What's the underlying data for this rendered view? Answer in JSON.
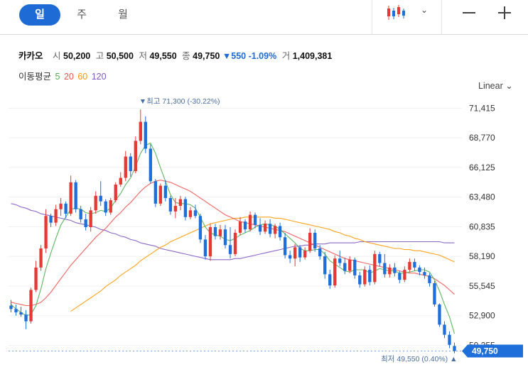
{
  "header": {
    "tabs": [
      {
        "label": "일",
        "active": true
      },
      {
        "label": "주",
        "active": false
      },
      {
        "label": "월",
        "active": false
      }
    ],
    "icons": [
      "candlestick-chart-icon",
      "chevron-down-icon",
      "zoom-out-icon",
      "zoom-in-icon"
    ]
  },
  "quote": {
    "name": "카카오",
    "open_label": "시",
    "open": "50,200",
    "high_label": "고",
    "high": "50,500",
    "low_label": "저",
    "low": "49,550",
    "close_label": "종",
    "close": "49,750",
    "change": "▼550",
    "change_pct": "-1.09%",
    "volume_label": "거",
    "volume": "1,409,381"
  },
  "ma_legend": {
    "label": "이동평균",
    "periods": [
      {
        "value": "5",
        "color": "#4caf50"
      },
      {
        "value": "20",
        "color": "#ef5350"
      },
      {
        "value": "60",
        "color": "#ff9800"
      },
      {
        "value": "120",
        "color": "#7e57c2"
      }
    ]
  },
  "scale_label": "Linear ⌄",
  "chart_data": {
    "type": "candlestick",
    "colors": {
      "up": "#e53935",
      "down": "#1e6fd9",
      "ma5": "#4caf50",
      "ma20": "#ef5350",
      "ma60": "#ff9800",
      "ma120": "#7e57c2"
    },
    "y_ticks": [
      71415,
      68770,
      66125,
      63480,
      60835,
      58190,
      55545,
      52900,
      50255
    ],
    "y_tick_labels": [
      "71,415",
      "68,770",
      "66,125",
      "63,480",
      "60,835",
      "58,190",
      "55,545",
      "52,900",
      "50,255"
    ],
    "ylim": [
      49400,
      72200
    ],
    "current_price_label": "49,750",
    "current_price": 49750,
    "high_annotation": "▼최고 71,300 (-30.22%)",
    "high_value": 71300,
    "low_annotation": "최저 49,550 (0.40%) ▲",
    "low_value": 49550,
    "candles": [
      [
        53800,
        54300,
        53200,
        53500
      ],
      [
        53500,
        53900,
        52900,
        53200
      ],
      [
        53200,
        53700,
        52800,
        53000
      ],
      [
        53000,
        53400,
        51700,
        52400
      ],
      [
        52400,
        55400,
        52200,
        55200
      ],
      [
        55200,
        57800,
        55000,
        57200
      ],
      [
        57200,
        59200,
        56900,
        58900
      ],
      [
        58900,
        62400,
        58500,
        61800
      ],
      [
        61800,
        62000,
        60800,
        61200
      ],
      [
        61200,
        62800,
        60900,
        62400
      ],
      [
        62400,
        63400,
        61800,
        62900
      ],
      [
        62900,
        63100,
        61600,
        62000
      ],
      [
        62000,
        65400,
        61800,
        64800
      ],
      [
        64800,
        65000,
        62100,
        62400
      ],
      [
        62400,
        62700,
        61200,
        61500
      ],
      [
        61500,
        62000,
        60500,
        60800
      ],
      [
        60800,
        62600,
        60400,
        62300
      ],
      [
        62300,
        64000,
        62000,
        63600
      ],
      [
        63600,
        64900,
        62700,
        63100
      ],
      [
        63100,
        63300,
        61800,
        62100
      ],
      [
        62100,
        63400,
        61900,
        63200
      ],
      [
        63200,
        64800,
        63000,
        64600
      ],
      [
        64600,
        65700,
        64400,
        65200
      ],
      [
        65200,
        67600,
        64900,
        67100
      ],
      [
        67100,
        67400,
        65300,
        65800
      ],
      [
        65800,
        68900,
        65600,
        68500
      ],
      [
        68500,
        71300,
        68200,
        70200
      ],
      [
        70200,
        70700,
        67400,
        67800
      ],
      [
        67800,
        68200,
        64700,
        64900
      ],
      [
        64900,
        65100,
        62600,
        62900
      ],
      [
        62900,
        64700,
        62700,
        64500
      ],
      [
        64500,
        65000,
        63100,
        63400
      ],
      [
        63400,
        63600,
        61900,
        62200
      ],
      [
        62200,
        63400,
        61600,
        62700
      ],
      [
        62700,
        63600,
        62300,
        63300
      ],
      [
        63300,
        63500,
        61400,
        61700
      ],
      [
        61700,
        62600,
        61500,
        62300
      ],
      [
        62300,
        62800,
        61600,
        61800
      ],
      [
        61800,
        62000,
        59400,
        59700
      ],
      [
        59700,
        60100,
        57900,
        58200
      ],
      [
        58200,
        61100,
        57800,
        60800
      ],
      [
        60800,
        61100,
        59700,
        60000
      ],
      [
        60000,
        61000,
        59700,
        60600
      ],
      [
        60600,
        61000,
        58900,
        59200
      ],
      [
        59200,
        60800,
        58000,
        58400
      ],
      [
        58400,
        60600,
        58200,
        60300
      ],
      [
        60300,
        61700,
        60100,
        61300
      ],
      [
        61300,
        61500,
        60300,
        60600
      ],
      [
        60600,
        62200,
        60400,
        61900
      ],
      [
        61900,
        62100,
        60700,
        61000
      ],
      [
        61000,
        61600,
        60100,
        60400
      ],
      [
        60400,
        61400,
        60200,
        61100
      ],
      [
        61100,
        61500,
        59900,
        60200
      ],
      [
        60200,
        61100,
        59800,
        60900
      ],
      [
        60900,
        61200,
        59600,
        59900
      ],
      [
        59900,
        60300,
        58000,
        58300
      ],
      [
        58300,
        58700,
        57600,
        58000
      ],
      [
        58000,
        59300,
        57300,
        59000
      ],
      [
        59000,
        59200,
        57700,
        58100
      ],
      [
        58100,
        59000,
        57900,
        58700
      ],
      [
        58700,
        60700,
        58500,
        60300
      ],
      [
        60300,
        60600,
        58600,
        58900
      ],
      [
        58900,
        59200,
        57900,
        58200
      ],
      [
        58200,
        58600,
        56200,
        56600
      ],
      [
        56600,
        57000,
        55300,
        55600
      ],
      [
        55600,
        58300,
        55400,
        58000
      ],
      [
        58000,
        58700,
        57300,
        57600
      ],
      [
        57600,
        58100,
        56600,
        56900
      ],
      [
        56900,
        58200,
        56700,
        57900
      ],
      [
        57900,
        58100,
        56200,
        56500
      ],
      [
        56500,
        56800,
        55400,
        55700
      ],
      [
        55700,
        57300,
        55500,
        57000
      ],
      [
        57000,
        57400,
        55600,
        55900
      ],
      [
        55900,
        58700,
        55700,
        58400
      ],
      [
        58400,
        58600,
        57300,
        57600
      ],
      [
        57600,
        58400,
        56300,
        56600
      ],
      [
        56600,
        57500,
        56300,
        57200
      ],
      [
        57200,
        57600,
        56400,
        56700
      ],
      [
        56700,
        56900,
        55800,
        56100
      ],
      [
        56100,
        57300,
        55900,
        57000
      ],
      [
        57000,
        58000,
        56800,
        57700
      ],
      [
        57700,
        58000,
        56900,
        57200
      ],
      [
        57200,
        57400,
        56500,
        56800
      ],
      [
        56800,
        57200,
        56200,
        56500
      ],
      [
        56500,
        56700,
        55500,
        55800
      ],
      [
        55800,
        56000,
        53700,
        53900
      ],
      [
        53900,
        54000,
        51900,
        52100
      ],
      [
        52100,
        52400,
        50900,
        51200
      ],
      [
        51200,
        51500,
        50000,
        50300
      ],
      [
        50200,
        50500,
        49550,
        49750
      ]
    ],
    "ma5": [
      53900,
      53500,
      53200,
      52900,
      53000,
      53800,
      55300,
      57100,
      58500,
      59800,
      61000,
      61700,
      62400,
      62500,
      62400,
      62100,
      62000,
      62100,
      62300,
      62200,
      62500,
      63200,
      63800,
      64600,
      65200,
      66200,
      67400,
      68100,
      68300,
      67400,
      66100,
      64900,
      63700,
      63000,
      62900,
      62900,
      62800,
      62500,
      61700,
      60800,
      60300,
      60100,
      60000,
      59700,
      59600,
      59800,
      60100,
      60300,
      60500,
      60800,
      61000,
      61100,
      61000,
      60900,
      60600,
      60200,
      59800,
      59400,
      58900,
      58700,
      58700,
      58800,
      58800,
      58400,
      57800,
      57500,
      57200,
      56900,
      56800,
      57000,
      57000,
      57000,
      56700,
      56900,
      57100,
      57000,
      56900,
      56900,
      56700,
      56700,
      56800,
      56900,
      57000,
      57000,
      56800,
      56100,
      55100,
      53900,
      52800,
      51300
    ],
    "ma20": [
      54100,
      54000,
      53900,
      53800,
      53800,
      53900,
      54100,
      54500,
      55000,
      55600,
      56200,
      56800,
      57400,
      57900,
      58400,
      58900,
      59400,
      59900,
      60300,
      60700,
      61200,
      61700,
      62100,
      62600,
      63000,
      63500,
      64000,
      64400,
      64700,
      64900,
      65000,
      64900,
      64800,
      64600,
      64400,
      64200,
      64000,
      63700,
      63400,
      63100,
      62800,
      62500,
      62200,
      61900,
      61700,
      61500,
      61300,
      61200,
      61100,
      61000,
      60900,
      60800,
      60700,
      60600,
      60500,
      60400,
      60200,
      60000,
      59800,
      59600,
      59400,
      59200,
      59000,
      58800,
      58600,
      58400,
      58200,
      58000,
      57900,
      57800,
      57700,
      57600,
      57500,
      57400,
      57300,
      57200,
      57100,
      57000,
      56900,
      56800,
      56700,
      56700,
      56600,
      56500,
      56400,
      56200,
      55900,
      55600,
      55200,
      54800
    ],
    "ma60": [
      null,
      null,
      null,
      null,
      null,
      null,
      null,
      null,
      null,
      null,
      null,
      null,
      53300,
      53600,
      53900,
      54200,
      54500,
      54800,
      55100,
      55500,
      55800,
      56100,
      56500,
      56800,
      57100,
      57400,
      57800,
      58100,
      58400,
      58700,
      59000,
      59200,
      59500,
      59700,
      59900,
      60100,
      60300,
      60500,
      60700,
      60900,
      61100,
      61200,
      61300,
      61400,
      61500,
      61600,
      61600,
      61700,
      61700,
      61700,
      61700,
      61700,
      61700,
      61600,
      61600,
      61500,
      61400,
      61300,
      61200,
      61100,
      61000,
      60900,
      60800,
      60700,
      60600,
      60400,
      60300,
      60100,
      60000,
      59800,
      59700,
      59500,
      59400,
      59300,
      59200,
      59100,
      59000,
      58900,
      58900,
      58800,
      58800,
      58700,
      58700,
      58600,
      58500,
      58400,
      58300,
      58100,
      57900,
      57700
    ],
    "ma120": [
      62900,
      62800,
      62600,
      62500,
      62300,
      62200,
      62000,
      61900,
      61800,
      61700,
      61600,
      61500,
      61400,
      61200,
      61100,
      61000,
      60900,
      60800,
      60600,
      60500,
      60300,
      60200,
      60000,
      59900,
      59700,
      59600,
      59400,
      59300,
      59200,
      59100,
      58900,
      58800,
      58700,
      58600,
      58500,
      58400,
      58300,
      58200,
      58100,
      58000,
      57900,
      57900,
      57900,
      57900,
      57900,
      58000,
      58000,
      58100,
      58200,
      58300,
      58400,
      58500,
      58600,
      58700,
      58800,
      58900,
      59000,
      59100,
      59100,
      59200,
      59200,
      59300,
      59300,
      59300,
      59400,
      59400,
      59400,
      59400,
      59400,
      59400,
      59500,
      59500,
      59500,
      59500,
      59500,
      59500,
      59500,
      59500,
      59500,
      59500,
      59500,
      59500,
      59500,
      59500,
      59500,
      59500,
      59500,
      59400,
      59400,
      59400
    ]
  }
}
